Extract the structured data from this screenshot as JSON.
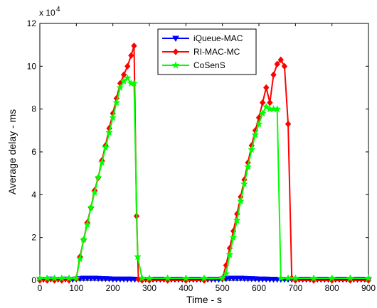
{
  "chart_data": {
    "type": "line",
    "xlabel": "Time - s",
    "ylabel": "Average delay - ms",
    "y_exponent_label": "x 10",
    "y_exponent_power": "4",
    "xlim": [
      0,
      900
    ],
    "ylim": [
      0,
      12
    ],
    "x_scale_note": "y values in units of 10^4 ms",
    "xticks": [
      "0",
      "100",
      "200",
      "300",
      "400",
      "500",
      "600",
      "700",
      "800",
      "900"
    ],
    "yticks": [
      "0",
      "2",
      "4",
      "6",
      "8",
      "10",
      "12"
    ],
    "grid": false,
    "legend_position": "top-center",
    "series": [
      {
        "name": "iQueue-MAC",
        "color": "#0000ff",
        "marker": "triangle-down",
        "x": [
          0,
          10,
          20,
          30,
          40,
          50,
          60,
          70,
          80,
          90,
          100,
          110,
          120,
          130,
          140,
          150,
          160,
          170,
          180,
          190,
          200,
          210,
          220,
          230,
          240,
          250,
          260,
          270,
          280,
          290,
          300,
          310,
          320,
          330,
          340,
          350,
          360,
          370,
          380,
          390,
          400,
          410,
          420,
          430,
          440,
          450,
          460,
          470,
          480,
          490,
          500,
          510,
          520,
          530,
          540,
          550,
          560,
          570,
          580,
          590,
          600,
          610,
          620,
          630,
          640,
          650,
          660,
          670,
          680,
          690,
          700,
          710,
          720,
          730,
          740,
          750,
          760,
          770,
          780,
          790,
          800,
          810,
          820,
          830,
          840,
          850,
          860,
          870,
          880,
          890,
          900
        ],
        "y": [
          0.05,
          0.05,
          0.05,
          0.06,
          0.05,
          0.05,
          0.05,
          0.06,
          0.05,
          0.05,
          0.06,
          0.08,
          0.1,
          0.1,
          0.1,
          0.1,
          0.09,
          0.08,
          0.08,
          0.07,
          0.06,
          0.06,
          0.06,
          0.06,
          0.06,
          0.06,
          0.05,
          0.05,
          0.05,
          0.05,
          0.05,
          0.05,
          0.05,
          0.05,
          0.05,
          0.05,
          0.05,
          0.05,
          0.05,
          0.05,
          0.05,
          0.05,
          0.05,
          0.05,
          0.05,
          0.05,
          0.05,
          0.05,
          0.05,
          0.05,
          0.06,
          0.08,
          0.1,
          0.1,
          0.1,
          0.1,
          0.09,
          0.08,
          0.08,
          0.07,
          0.06,
          0.06,
          0.06,
          0.05,
          0.05,
          0.05,
          0.05,
          0.05,
          0.05,
          0.05,
          0.05,
          0.05,
          0.05,
          0.05,
          0.05,
          0.05,
          0.05,
          0.05,
          0.05,
          0.05,
          0.05,
          0.05,
          0.05,
          0.05,
          0.05,
          0.05,
          0.05,
          0.05,
          0.05,
          0.05,
          0.05
        ]
      },
      {
        "name": "RI-MAC-MC",
        "color": "#ff0000",
        "marker": "diamond",
        "x": [
          0,
          20,
          40,
          60,
          80,
          100,
          110,
          120,
          130,
          140,
          150,
          160,
          170,
          180,
          190,
          200,
          210,
          220,
          230,
          240,
          250,
          258,
          265,
          270,
          280,
          300,
          350,
          400,
          450,
          500,
          510,
          520,
          530,
          540,
          550,
          560,
          570,
          580,
          590,
          600,
          610,
          620,
          630,
          640,
          650,
          660,
          670,
          680,
          690,
          700,
          750,
          800,
          850,
          900
        ],
        "y": [
          0,
          0,
          0,
          0,
          0,
          0.1,
          1.1,
          1.9,
          2.7,
          3.4,
          4.2,
          4.8,
          5.6,
          6.3,
          7.1,
          7.8,
          8.5,
          9.2,
          9.6,
          10.0,
          10.5,
          10.95,
          3.0,
          0.05,
          0,
          0,
          0,
          0,
          0,
          0.1,
          0.7,
          1.5,
          2.3,
          3.1,
          3.9,
          4.7,
          5.5,
          6.3,
          7.0,
          7.6,
          8.3,
          9.0,
          8.3,
          9.6,
          10.1,
          10.3,
          10.0,
          7.3,
          0.1,
          0,
          0,
          0,
          0,
          0
        ]
      },
      {
        "name": "CoSenS",
        "color": "#00ff00",
        "marker": "star",
        "x": [
          0,
          20,
          40,
          60,
          80,
          100,
          110,
          120,
          130,
          140,
          150,
          160,
          170,
          180,
          190,
          200,
          210,
          220,
          230,
          240,
          250,
          258,
          268,
          280,
          300,
          350,
          400,
          450,
          500,
          510,
          520,
          530,
          540,
          550,
          560,
          570,
          580,
          590,
          600,
          610,
          620,
          630,
          640,
          650,
          660,
          680,
          700,
          750,
          800,
          850,
          900
        ],
        "y": [
          0.1,
          0.1,
          0.1,
          0.1,
          0.1,
          0.1,
          1.0,
          1.9,
          2.6,
          3.4,
          4.1,
          4.8,
          5.5,
          6.2,
          6.9,
          7.6,
          8.3,
          9.0,
          9.3,
          9.45,
          9.2,
          9.2,
          1.1,
          0.1,
          0.1,
          0.1,
          0.1,
          0.1,
          0.1,
          0.3,
          1.2,
          2.0,
          2.8,
          3.7,
          4.5,
          5.3,
          6.1,
          6.8,
          7.3,
          7.8,
          8.1,
          8.0,
          8.0,
          8.0,
          0.1,
          0.1,
          0.1,
          0.1,
          0.1,
          0.1,
          0.1
        ]
      }
    ]
  }
}
